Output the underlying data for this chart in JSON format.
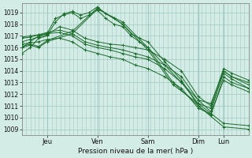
{
  "bg_color": "#d4ece6",
  "grid_color": "#a0c8c0",
  "line_color": "#1a6b2a",
  "ylim": [
    1008.5,
    1019.8
  ],
  "yticks": [
    1009,
    1010,
    1011,
    1012,
    1013,
    1014,
    1015,
    1016,
    1017,
    1018,
    1019
  ],
  "xlabel": "Pression niveau de la mer( hPa )",
  "day_labels": [
    "Jeu",
    "Ven",
    "Sam",
    "Dim",
    "Lun"
  ],
  "day_x": [
    24,
    72,
    120,
    168,
    192
  ],
  "xlim": [
    0,
    216
  ],
  "lines": [
    [
      0,
      1016.0,
      8,
      1016.2,
      16,
      1016.0,
      24,
      1016.5,
      48,
      1017.2,
      72,
      1019.3,
      96,
      1018.2,
      120,
      1016.0,
      144,
      1013.0,
      168,
      1011.0,
      192,
      1009.2,
      216,
      1009.0
    ],
    [
      0,
      1016.1,
      8,
      1016.3,
      16,
      1016.1,
      24,
      1016.6,
      48,
      1017.4,
      72,
      1019.4,
      96,
      1018.0,
      120,
      1015.8,
      144,
      1012.8,
      168,
      1011.2,
      192,
      1009.5,
      216,
      1009.3
    ],
    [
      0,
      1016.0,
      8,
      1016.5,
      16,
      1017.0,
      24,
      1017.2,
      32,
      1018.5,
      40,
      1018.8,
      48,
      1019.0,
      56,
      1018.5,
      64,
      1018.8,
      72,
      1019.2,
      80,
      1018.5,
      88,
      1018.0,
      96,
      1017.8,
      104,
      1017.0,
      112,
      1016.5,
      120,
      1016.0,
      136,
      1014.5,
      152,
      1013.0,
      168,
      1011.5,
      180,
      1010.5,
      192,
      1014.0,
      200,
      1013.5,
      216,
      1013.0
    ],
    [
      0,
      1015.5,
      8,
      1016.0,
      16,
      1016.8,
      24,
      1017.0,
      32,
      1018.2,
      40,
      1018.9,
      48,
      1019.1,
      56,
      1018.8,
      64,
      1019.0,
      72,
      1019.5,
      80,
      1018.9,
      88,
      1018.5,
      96,
      1018.0,
      104,
      1017.2,
      112,
      1016.8,
      120,
      1016.5,
      136,
      1014.8,
      152,
      1013.2,
      168,
      1011.0,
      180,
      1010.2,
      192,
      1013.5,
      200,
      1013.0,
      216,
      1012.5
    ],
    [
      0,
      1016.5,
      8,
      1016.7,
      16,
      1016.9,
      24,
      1017.1,
      36,
      1017.8,
      48,
      1017.5,
      60,
      1016.8,
      72,
      1016.5,
      84,
      1016.3,
      96,
      1016.2,
      108,
      1016.0,
      120,
      1015.8,
      136,
      1015.0,
      152,
      1014.0,
      168,
      1011.8,
      180,
      1011.0,
      192,
      1014.2,
      200,
      1013.8,
      216,
      1013.2
    ],
    [
      0,
      1016.8,
      8,
      1016.9,
      16,
      1017.1,
      24,
      1017.3,
      36,
      1017.5,
      48,
      1017.2,
      60,
      1016.5,
      72,
      1016.2,
      84,
      1016.0,
      96,
      1015.8,
      108,
      1015.5,
      120,
      1015.2,
      136,
      1014.5,
      152,
      1013.5,
      168,
      1011.5,
      180,
      1011.2,
      192,
      1014.0,
      200,
      1013.5,
      216,
      1012.8
    ],
    [
      0,
      1016.9,
      8,
      1017.0,
      16,
      1017.1,
      24,
      1017.2,
      36,
      1017.3,
      48,
      1017.0,
      60,
      1016.3,
      72,
      1016.0,
      84,
      1015.8,
      96,
      1015.5,
      108,
      1015.2,
      120,
      1015.0,
      136,
      1014.2,
      152,
      1013.0,
      168,
      1011.2,
      180,
      1010.8,
      192,
      1013.8,
      200,
      1013.3,
      216,
      1012.5
    ],
    [
      0,
      1016.3,
      8,
      1016.4,
      16,
      1016.5,
      24,
      1016.7,
      36,
      1016.8,
      48,
      1016.5,
      60,
      1015.8,
      72,
      1015.5,
      84,
      1015.2,
      96,
      1015.0,
      108,
      1014.5,
      120,
      1014.2,
      136,
      1013.5,
      152,
      1012.5,
      168,
      1010.8,
      180,
      1010.3,
      192,
      1013.2,
      200,
      1012.8,
      216,
      1012.2
    ]
  ]
}
